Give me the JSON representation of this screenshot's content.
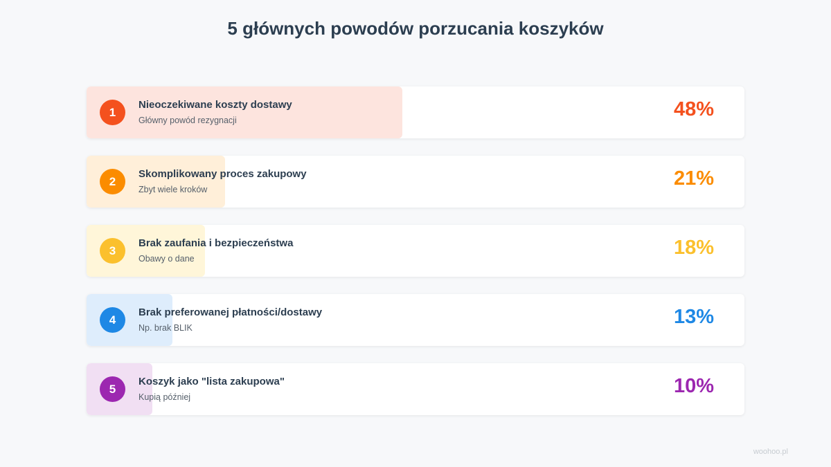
{
  "title": "5 głównych powodów porzucania koszyków",
  "footer": "woohoo.pl",
  "chart_data": {
    "type": "bar",
    "title": "5 głównych powodów porzucania koszyków",
    "xlim": [
      0,
      100
    ],
    "unit": "%",
    "categories": [
      "Nieoczekiwane koszty dostawy",
      "Skomplikowany proces zakupowy",
      "Brak zaufania i bezpieczeństwa",
      "Brak preferowanej płatności/dostawy",
      "Koszyk jako \"lista zakupowa\""
    ],
    "values": [
      48,
      21,
      18,
      13,
      10
    ],
    "items": [
      {
        "rank": "1",
        "label": "Nieoczekiwane koszty dostawy",
        "sub": "Główny powód rezygnacji",
        "value": 48,
        "value_label": "48%",
        "color": "#f4511e",
        "fill": "#fde4de"
      },
      {
        "rank": "2",
        "label": "Skomplikowany proces zakupowy",
        "sub": "Zbyt wiele kroków",
        "value": 21,
        "value_label": "21%",
        "color": "#fb8c00",
        "fill": "#ffefd9"
      },
      {
        "rank": "3",
        "label": "Brak zaufania i bezpieczeństwa",
        "sub": "Obawy o dane",
        "value": 18,
        "value_label": "18%",
        "color": "#fbc02d",
        "fill": "#fff6d9"
      },
      {
        "rank": "4",
        "label": "Brak preferowanej płatności/dostawy",
        "sub": "Np. brak BLIK",
        "value": 13,
        "value_label": "13%",
        "color": "#1e88e5",
        "fill": "#deedfc"
      },
      {
        "rank": "5",
        "label": "Koszyk jako \"lista zakupowa\"",
        "sub": "Kupią później",
        "value": 10,
        "value_label": "10%",
        "color": "#9c27b0",
        "fill": "#f1dff3"
      }
    ]
  }
}
